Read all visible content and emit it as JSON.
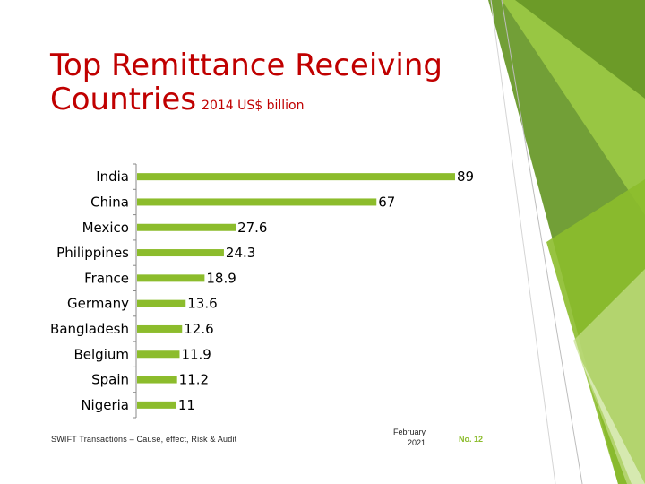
{
  "slide": {
    "title_main": "Top Remittance Receiving Countries",
    "title_sub": "2014 US$ billion"
  },
  "chart_data": {
    "type": "bar",
    "orientation": "horizontal",
    "categories": [
      "India",
      "China",
      "Mexico",
      "Philippines",
      "France",
      "Germany",
      "Bangladesh",
      "Belgium",
      "Spain",
      "Nigeria"
    ],
    "values": [
      89,
      67,
      27.6,
      24.3,
      18.9,
      13.6,
      12.6,
      11.9,
      11.2,
      11
    ],
    "value_labels": [
      "89",
      "67",
      "27.6",
      "24.3",
      "18.9",
      "13.6",
      "12.6",
      "11.9",
      "11.2",
      "11"
    ],
    "title": "",
    "xlabel": "",
    "ylabel": "",
    "xlim": [
      0,
      89
    ],
    "grid": false,
    "legend": "none",
    "bar_color": "#8cbc2c"
  },
  "footer": {
    "source": "SWIFT Transactions – Cause, effect, Risk & Audit",
    "date_line1": "February",
    "date_line2": "2021",
    "page": "No. 12"
  },
  "colors": {
    "title": "#c00000",
    "accent_green": "#8cbc2c",
    "dark_green": "#5a8a1e"
  }
}
